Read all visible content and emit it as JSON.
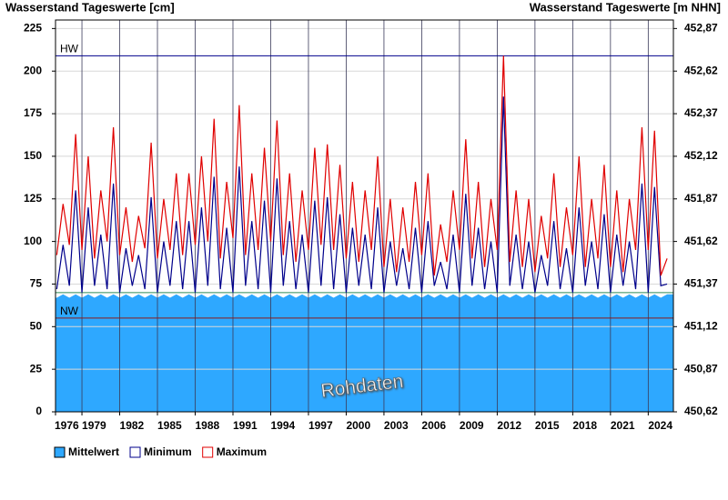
{
  "chart_data": {
    "type": "line",
    "title": "Wasserstand Tageswerte [cm]",
    "y2_title": "Wasserstand Tageswerte [m NHN]",
    "annotation": "Rohdaten",
    "xlim": [
      1976.9,
      2026.0
    ],
    "xticks": [
      {
        "value": 1976.9,
        "label": "1976"
      },
      1979,
      1982,
      1985,
      1988,
      1991,
      1994,
      1997,
      2000,
      2003,
      2006,
      2009,
      2012,
      2015,
      2018,
      2021,
      2024
    ],
    "ylim": [
      0,
      230
    ],
    "yticks": [
      0,
      25,
      50,
      75,
      100,
      125,
      150,
      175,
      200,
      225
    ],
    "y2lim": [
      450.62,
      452.92
    ],
    "y2ticks": [
      {
        "value": 450.62,
        "label": "450,62"
      },
      {
        "value": 450.87,
        "label": "450,87"
      },
      {
        "value": 451.12,
        "label": "451,12"
      },
      {
        "value": 451.37,
        "label": "451,37"
      },
      {
        "value": 451.62,
        "label": "451,62"
      },
      {
        "value": 451.87,
        "label": "451,87"
      },
      {
        "value": 452.12,
        "label": "452,12"
      },
      {
        "value": 452.37,
        "label": "452,37"
      },
      {
        "value": 452.62,
        "label": "452,62"
      },
      {
        "value": 452.87,
        "label": "452,87"
      }
    ],
    "grid": true,
    "reference_lines": [
      {
        "label": "HW",
        "value": 209,
        "color": "#00008b"
      },
      {
        "value": 70,
        "color": "#2e8b57"
      },
      {
        "label": "NW",
        "value": 55,
        "color": "#8b1a1a"
      }
    ],
    "x": [
      1977,
      1977.5,
      1978,
      1978.5,
      1979,
      1979.5,
      1980,
      1980.5,
      1981,
      1981.5,
      1982,
      1982.5,
      1983,
      1983.5,
      1984,
      1984.5,
      1985,
      1985.5,
      1986,
      1986.5,
      1987,
      1987.5,
      1988,
      1988.5,
      1989,
      1989.5,
      1990,
      1990.5,
      1991,
      1991.5,
      1992,
      1992.5,
      1993,
      1993.5,
      1994,
      1994.5,
      1995,
      1995.5,
      1996,
      1996.5,
      1997,
      1997.5,
      1998,
      1998.5,
      1999,
      1999.5,
      2000,
      2000.5,
      2001,
      2001.5,
      2002,
      2002.5,
      2003,
      2003.5,
      2004,
      2004.5,
      2005,
      2005.5,
      2006,
      2006.5,
      2007,
      2007.5,
      2008,
      2008.5,
      2009,
      2009.5,
      2010,
      2010.5,
      2011,
      2011.5,
      2012,
      2012.5,
      2013,
      2013.5,
      2014,
      2014.5,
      2015,
      2015.5,
      2016,
      2016.5,
      2017,
      2017.5,
      2018,
      2018.5,
      2019,
      2019.5,
      2020,
      2020.5,
      2021,
      2021.5,
      2022,
      2022.5,
      2023,
      2023.5,
      2024,
      2024.5,
      2025,
      2025.5
    ],
    "series": [
      {
        "name": "Mittelwert",
        "kind": "area",
        "color": "#2ea8ff",
        "values": [
          67,
          69,
          67,
          69,
          67,
          69,
          67,
          69,
          67,
          69,
          67,
          69,
          67,
          69,
          67,
          69,
          67,
          69,
          67,
          69,
          67,
          69,
          67,
          69,
          67,
          69,
          67,
          69,
          67,
          69,
          67,
          69,
          67,
          69,
          67,
          69,
          67,
          69,
          67,
          69,
          67,
          69,
          67,
          69,
          67,
          69,
          67,
          69,
          67,
          69,
          67,
          69,
          67,
          69,
          67,
          69,
          67,
          69,
          67,
          69,
          67,
          69,
          67,
          69,
          67,
          69,
          67,
          69,
          67,
          69,
          67,
          69,
          67,
          69,
          67,
          69,
          67,
          69,
          67,
          69,
          67,
          69,
          67,
          69,
          67,
          69,
          67,
          69,
          67,
          69,
          67,
          69,
          67,
          69,
          67,
          69,
          67,
          69
        ]
      },
      {
        "name": "Minimum",
        "kind": "line",
        "color": "#00008b",
        "values": [
          72,
          98,
          74,
          130,
          70,
          120,
          74,
          104,
          72,
          134,
          70,
          96,
          74,
          92,
          72,
          126,
          70,
          100,
          74,
          112,
          72,
          112,
          70,
          120,
          74,
          138,
          72,
          108,
          70,
          144,
          74,
          112,
          72,
          124,
          70,
          137,
          74,
          112,
          72,
          104,
          70,
          124,
          74,
          126,
          72,
          116,
          70,
          108,
          74,
          104,
          72,
          120,
          70,
          100,
          74,
          96,
          72,
          108,
          70,
          112,
          74,
          88,
          72,
          104,
          70,
          128,
          74,
          108,
          72,
          100,
          70,
          185,
          74,
          104,
          72,
          100,
          70,
          92,
          74,
          112,
          72,
          96,
          70,
          120,
          74,
          100,
          72,
          116,
          70,
          104,
          74,
          100,
          72,
          134,
          70,
          132,
          74,
          75
        ]
      },
      {
        "name": "Maximum",
        "kind": "line",
        "color": "#e00000",
        "values": [
          92,
          122,
          98,
          163,
          95,
          150,
          90,
          130,
          100,
          167,
          92,
          120,
          88,
          115,
          96,
          158,
          90,
          125,
          95,
          140,
          92,
          140,
          98,
          150,
          100,
          172,
          90,
          135,
          102,
          180,
          92,
          140,
          95,
          155,
          100,
          171,
          92,
          140,
          88,
          130,
          95,
          155,
          98,
          157,
          95,
          145,
          90,
          135,
          88,
          130,
          95,
          150,
          85,
          125,
          82,
          120,
          88,
          135,
          92,
          140,
          80,
          110,
          88,
          130,
          95,
          160,
          90,
          135,
          85,
          125,
          95,
          209,
          88,
          130,
          85,
          125,
          82,
          115,
          90,
          140,
          85,
          120,
          92,
          150,
          85,
          125,
          90,
          145,
          85,
          130,
          82,
          125,
          95,
          167,
          95,
          165,
          80,
          90
        ]
      }
    ]
  }
}
